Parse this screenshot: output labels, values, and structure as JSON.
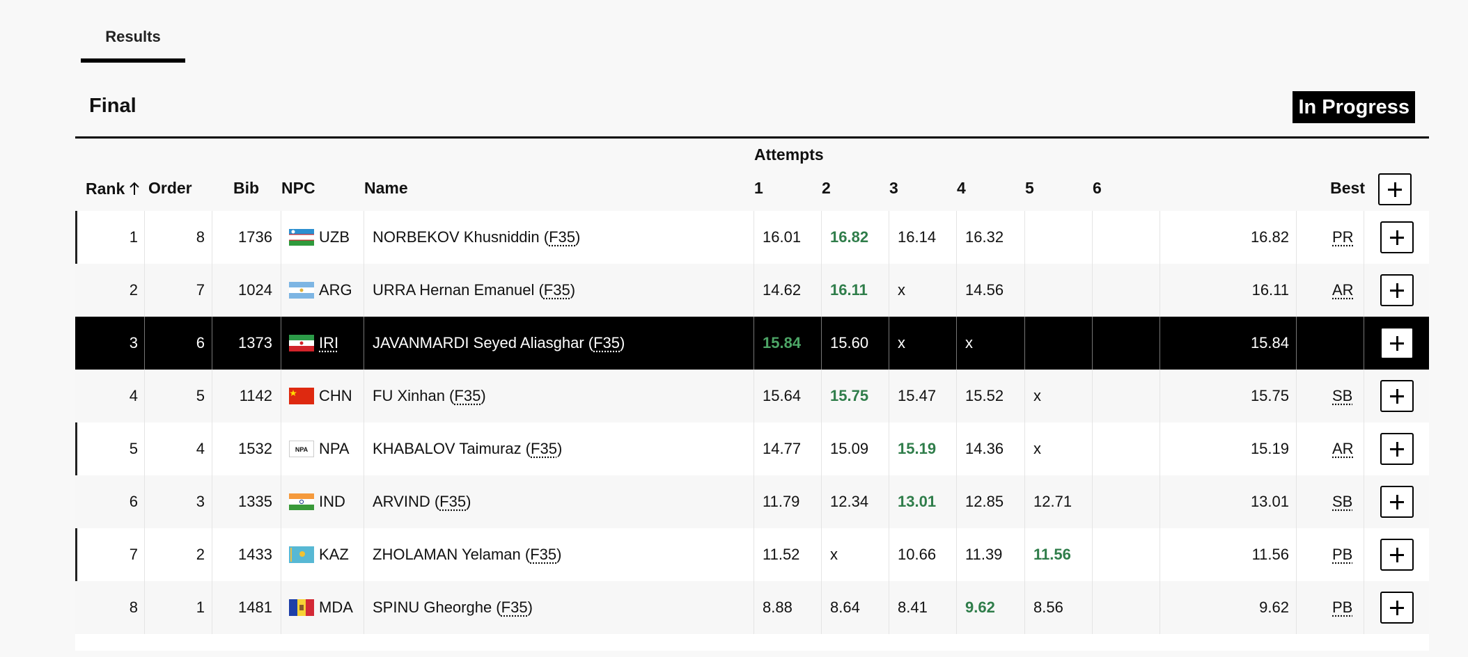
{
  "tabs": [
    {
      "label": "Results"
    }
  ],
  "event": {
    "title": "Final",
    "status": "In Progress"
  },
  "header": {
    "attempts": "Attempts",
    "rank": "Rank",
    "order": "Order",
    "bib": "Bib",
    "npc": "NPC",
    "name": "Name",
    "a1": "1",
    "a2": "2",
    "a3": "3",
    "a4": "4",
    "a5": "5",
    "a6": "6",
    "best": "Best"
  },
  "rows": [
    {
      "rank": "1",
      "order": "8",
      "bib": "1736",
      "npc": "UZB",
      "flag": "uzbekistan-flag",
      "name": "NORBEKOV Khusniddin (",
      "cls": "F35",
      "attempts": [
        "16.01",
        "16.82",
        "16.14",
        "16.32",
        "",
        ""
      ],
      "best_attempt": 1,
      "best": "16.82",
      "record": "PR"
    },
    {
      "rank": "2",
      "order": "7",
      "bib": "1024",
      "npc": "ARG",
      "flag": "argentina-flag",
      "name": "URRA Hernan Emanuel (",
      "cls": "F35",
      "attempts": [
        "14.62",
        "16.11",
        "x",
        "14.56",
        "",
        ""
      ],
      "best_attempt": 1,
      "best": "16.11",
      "record": "AR"
    },
    {
      "rank": "3",
      "order": "6",
      "bib": "1373",
      "npc": "IRI",
      "flag": "iran-flag",
      "name": "JAVANMARDI Seyed Aliasghar (",
      "cls": "F35",
      "attempts": [
        "15.84",
        "15.60",
        "x",
        "x",
        "",
        ""
      ],
      "best_attempt": 0,
      "best": "15.84",
      "record": ""
    },
    {
      "rank": "4",
      "order": "5",
      "bib": "1142",
      "npc": "CHN",
      "flag": "china-flag",
      "name": "FU Xinhan (",
      "cls": "F35",
      "attempts": [
        "15.64",
        "15.75",
        "15.47",
        "15.52",
        "x",
        ""
      ],
      "best_attempt": 1,
      "best": "15.75",
      "record": "SB"
    },
    {
      "rank": "5",
      "order": "4",
      "bib": "1532",
      "npc": "NPA",
      "flag": "npa-flag",
      "flag_text": "NPA",
      "name": "KHABALOV Taimuraz (",
      "cls": "F35",
      "attempts": [
        "14.77",
        "15.09",
        "15.19",
        "14.36",
        "x",
        ""
      ],
      "best_attempt": 2,
      "best": "15.19",
      "record": "AR"
    },
    {
      "rank": "6",
      "order": "3",
      "bib": "1335",
      "npc": "IND",
      "flag": "india-flag",
      "name": "ARVIND (",
      "cls": "F35",
      "attempts": [
        "11.79",
        "12.34",
        "13.01",
        "12.85",
        "12.71",
        ""
      ],
      "best_attempt": 2,
      "best": "13.01",
      "record": "SB"
    },
    {
      "rank": "7",
      "order": "2",
      "bib": "1433",
      "npc": "KAZ",
      "flag": "kazakhstan-flag",
      "name": "ZHOLAMAN Yelaman (",
      "cls": "F35",
      "attempts": [
        "11.52",
        "x",
        "10.66",
        "11.39",
        "11.56",
        ""
      ],
      "best_attempt": 4,
      "best": "11.56",
      "record": "PB"
    },
    {
      "rank": "8",
      "order": "1",
      "bib": "1481",
      "npc": "MDA",
      "flag": "moldova-flag",
      "name": "SPINU Gheorghe (",
      "cls": "F35",
      "attempts": [
        "8.88",
        "8.64",
        "8.41",
        "9.62",
        "8.56",
        ""
      ],
      "best_attempt": 3,
      "best": "9.62",
      "record": "PB"
    }
  ],
  "icons": {
    "sort": "sort-ascending-icon",
    "expand": "plus-icon"
  },
  "colors": {
    "best_attempt": "#2f7d4a",
    "highlight_row": "#000000",
    "status_badge": "#000000"
  }
}
